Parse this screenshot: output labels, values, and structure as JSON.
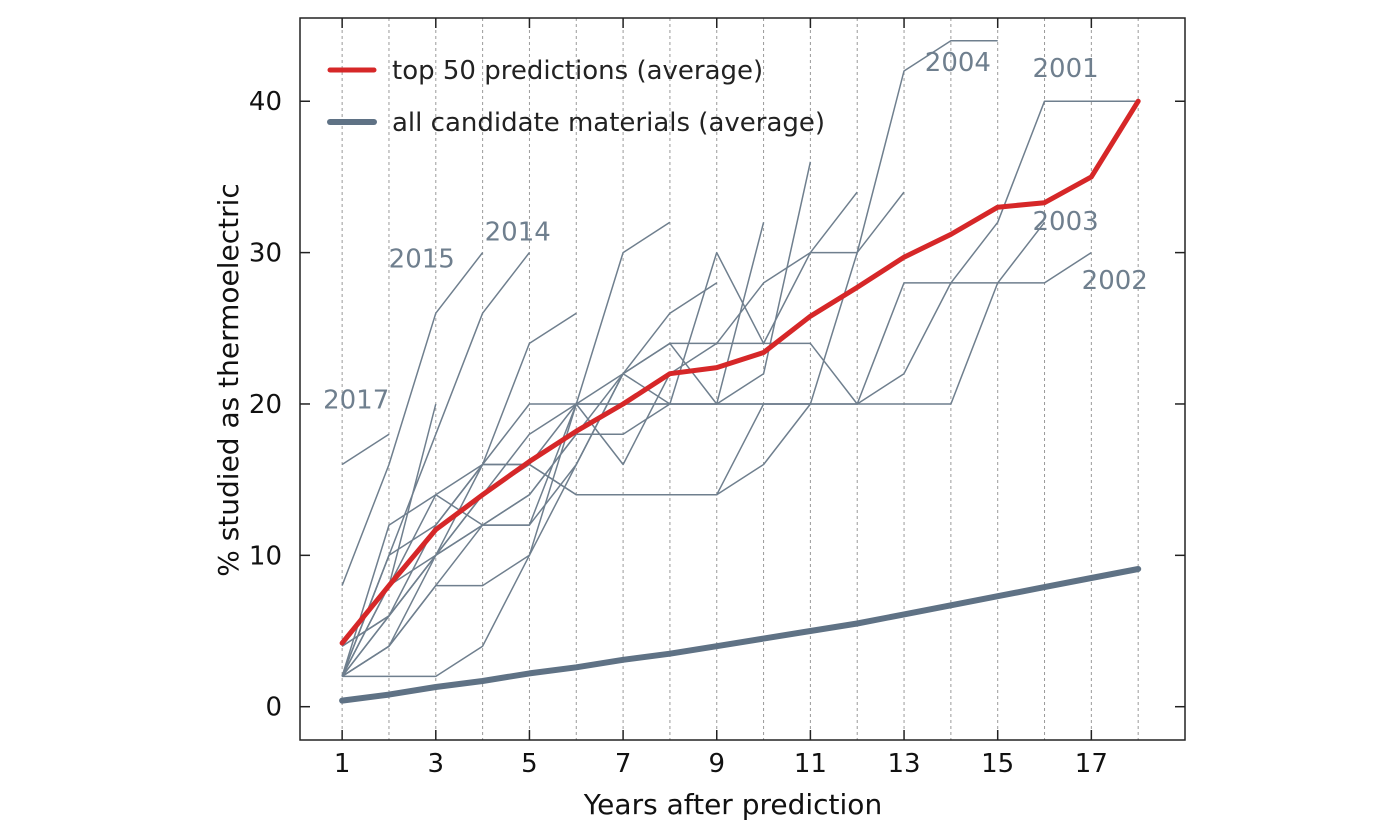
{
  "chart_data": {
    "type": "line",
    "title": "",
    "xlabel": "Years after prediction",
    "ylabel": "% studied as thermoelectric",
    "xlim": [
      0.1,
      19.0
    ],
    "ylim": [
      -2.2,
      45.5
    ],
    "xticks": [
      1,
      3,
      5,
      7,
      9,
      11,
      13,
      15,
      17
    ],
    "yticks": [
      0,
      10,
      20,
      30,
      40
    ],
    "grid": "vertical dashed lines at every integer year",
    "legend_position": "top-left",
    "colors": {
      "top50": "#d62728",
      "all": "#5f7285",
      "annual": "#6f7f8e",
      "grid": "#9a9a9a"
    },
    "series": [
      {
        "name": "top 50 predictions (average)",
        "x": [
          1,
          2,
          3,
          4,
          5,
          6,
          7,
          8,
          9,
          10,
          11,
          12,
          13,
          14,
          15,
          16,
          17,
          18
        ],
        "y": [
          4.2,
          8.0,
          11.7,
          14.0,
          16.2,
          18.2,
          20.0,
          22.0,
          22.4,
          23.4,
          25.8,
          27.7,
          29.7,
          31.2,
          33.0,
          33.3,
          35.0,
          40.0
        ]
      },
      {
        "name": "all candidate materials (average)",
        "x": [
          1,
          2,
          3,
          4,
          5,
          6,
          7,
          8,
          9,
          10,
          11,
          12,
          13,
          14,
          15,
          16,
          17,
          18
        ],
        "y": [
          0.4,
          0.8,
          1.3,
          1.7,
          2.2,
          2.6,
          3.1,
          3.5,
          4.0,
          4.5,
          5.0,
          5.5,
          6.1,
          6.7,
          7.3,
          7.9,
          8.5,
          9.1
        ]
      }
    ],
    "annual_series": [
      {
        "label": "2017",
        "x": [
          1,
          2
        ],
        "y": [
          16,
          18
        ]
      },
      {
        "label": "2015",
        "x": [
          1,
          2,
          3,
          4
        ],
        "y": [
          8,
          16,
          26,
          30
        ]
      },
      {
        "label": "2014",
        "x": [
          1,
          2,
          3,
          4,
          5
        ],
        "y": [
          2,
          10,
          18,
          26,
          30
        ]
      },
      {
        "label": "",
        "x": [
          1,
          2,
          3
        ],
        "y": [
          2,
          8,
          20
        ]
      },
      {
        "label": "",
        "x": [
          1,
          2,
          3,
          4,
          5,
          6
        ],
        "y": [
          2,
          4,
          10,
          16,
          24,
          26
        ]
      },
      {
        "label": "",
        "x": [
          1,
          2,
          3,
          4,
          5,
          6,
          7,
          8
        ],
        "y": [
          4,
          6,
          10,
          12,
          12,
          20,
          30,
          32
        ]
      },
      {
        "label": "",
        "x": [
          1,
          2,
          3,
          4,
          5,
          6,
          7,
          8,
          9
        ],
        "y": [
          2,
          2,
          2,
          4,
          10,
          20,
          22,
          26,
          28
        ]
      },
      {
        "label": "",
        "x": [
          1,
          2,
          3,
          4,
          5,
          6,
          7,
          8,
          9,
          10
        ],
        "y": [
          2,
          4,
          8,
          8,
          10,
          16,
          22,
          24,
          20,
          32
        ]
      },
      {
        "label": "",
        "x": [
          1,
          2,
          3,
          4,
          5,
          6,
          7,
          8,
          9,
          10,
          11
        ],
        "y": [
          2,
          12,
          14,
          16,
          16,
          14,
          14,
          14,
          14,
          16,
          20
        ]
      },
      {
        "label": "",
        "x": [
          1,
          2,
          3,
          4,
          5,
          6,
          7,
          8,
          9,
          10,
          11
        ],
        "y": [
          4,
          6,
          12,
          16,
          20,
          20,
          20,
          20,
          20,
          22,
          36
        ]
      },
      {
        "label": "",
        "x": [
          1,
          2,
          3,
          4,
          5,
          6,
          7,
          8,
          9,
          10,
          11,
          12
        ],
        "y": [
          2,
          4,
          8,
          12,
          14,
          18,
          22,
          20,
          30,
          24,
          30,
          34
        ]
      },
      {
        "label": "",
        "x": [
          1,
          2,
          3,
          4,
          5,
          6,
          7,
          8,
          9,
          10,
          11,
          12,
          13
        ],
        "y": [
          2,
          6,
          10,
          14,
          18,
          20,
          16,
          22,
          24,
          28,
          30,
          30,
          34
        ]
      },
      {
        "label": "2004",
        "x": [
          1,
          2,
          3,
          4,
          5,
          6,
          7,
          8,
          9,
          10,
          11,
          12,
          13,
          14,
          15
        ],
        "y": [
          2,
          8,
          14,
          12,
          14,
          18,
          18,
          20,
          20,
          20,
          20,
          30,
          42,
          44,
          44
        ]
      },
      {
        "label": "2003",
        "x": [
          1,
          2,
          3,
          4,
          5,
          6,
          7,
          8,
          9,
          10,
          11,
          12,
          13,
          14,
          15,
          16
        ],
        "y": [
          2,
          10,
          12,
          16,
          16,
          20,
          20,
          20,
          20,
          20,
          20,
          20,
          20,
          20,
          28,
          32
        ]
      },
      {
        "label": "2002",
        "x": [
          1,
          2,
          3,
          4,
          5,
          6,
          7,
          8,
          9,
          10,
          11,
          12,
          13,
          14,
          15,
          16,
          17
        ],
        "y": [
          4,
          8,
          10,
          14,
          16,
          14,
          14,
          14,
          14,
          20,
          20,
          20,
          28,
          28,
          28,
          28,
          30
        ]
      },
      {
        "label": "2001",
        "x": [
          1,
          2,
          3,
          4,
          5,
          6,
          7,
          8,
          9,
          10,
          11,
          12,
          13,
          14,
          15,
          16,
          17,
          18
        ],
        "y": [
          2,
          6,
          10,
          12,
          12,
          16,
          22,
          24,
          24,
          24,
          24,
          20,
          22,
          28,
          32,
          40,
          40,
          40
        ]
      }
    ]
  }
}
